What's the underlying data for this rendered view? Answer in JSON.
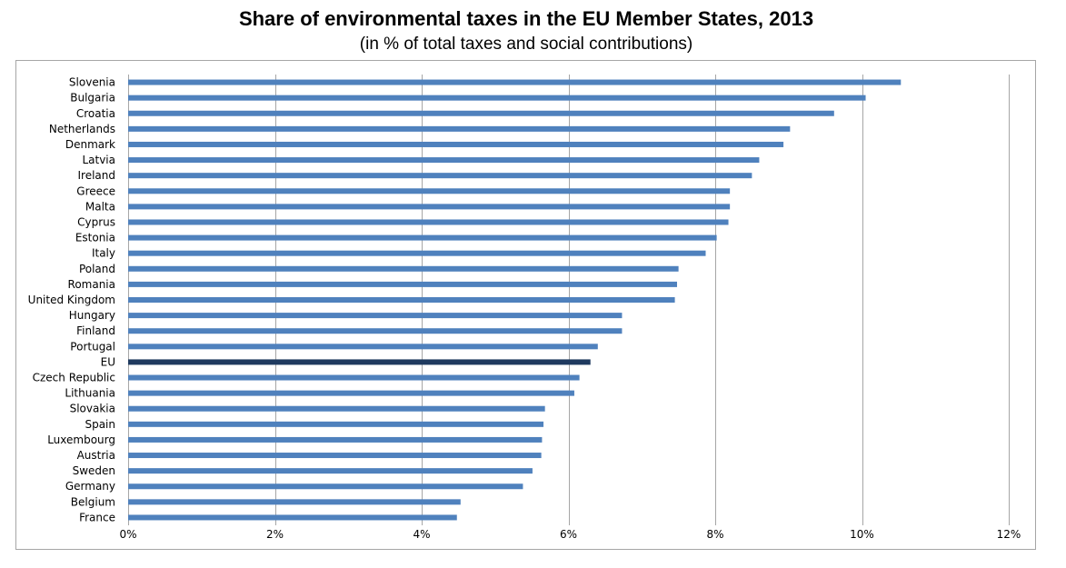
{
  "chart_data": {
    "type": "bar",
    "orientation": "horizontal",
    "title": "Share of environmental taxes in the EU Member States, 2013",
    "subtitle": "(in % of total taxes and social contributions)",
    "xlabel": "",
    "ylabel": "",
    "xlim": [
      0,
      12
    ],
    "x_ticks": [
      "0%",
      "2%",
      "4%",
      "6%",
      "8%",
      "10%",
      "12%"
    ],
    "x_tick_values": [
      0,
      2,
      4,
      6,
      8,
      10,
      12
    ],
    "grid": "vertical",
    "legend": "none",
    "colors": {
      "bar": "#4f81bd",
      "highlight": "#1f3a5f",
      "grid": "#a6a6a6",
      "border": "#a6a6a6"
    },
    "highlight_category": "EU",
    "categories": [
      "Slovenia",
      "Bulgaria",
      "Croatia",
      "Netherlands",
      "Denmark",
      "Latvia",
      "Ireland",
      "Greece",
      "Malta",
      "Cyprus",
      "Estonia",
      "Italy",
      "Poland",
      "Romania",
      "United Kingdom",
      "Hungary",
      "Finland",
      "Portugal",
      "EU",
      "Czech Republic",
      "Lithuania",
      "Slovakia",
      "Spain",
      "Luxembourg",
      "Austria",
      "Sweden",
      "Germany",
      "Belgium",
      "France"
    ],
    "values": [
      10.53,
      10.05,
      9.62,
      9.02,
      8.93,
      8.6,
      8.5,
      8.2,
      8.2,
      8.18,
      8.02,
      7.87,
      7.5,
      7.48,
      7.45,
      6.73,
      6.73,
      6.4,
      6.3,
      6.15,
      6.08,
      5.68,
      5.66,
      5.64,
      5.63,
      5.51,
      5.38,
      4.53,
      4.48
    ]
  }
}
